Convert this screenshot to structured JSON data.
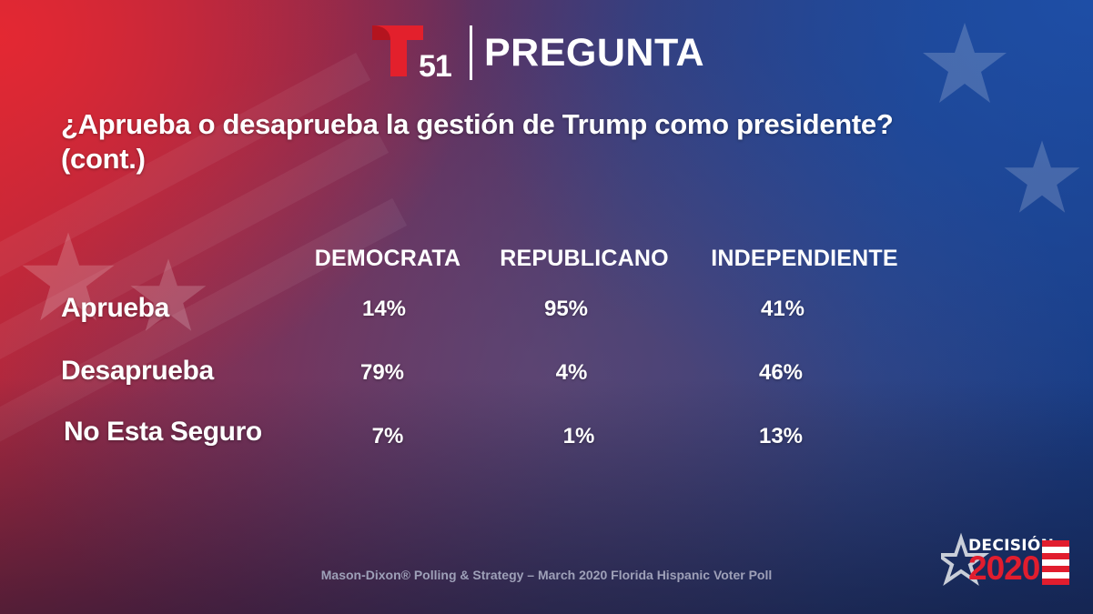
{
  "header": {
    "channel_number": "51",
    "brand_title": "PREGUNTA"
  },
  "question": {
    "line1": "¿Aprueba o desaprueba la gestión de Trump como presidente?",
    "line2": "(cont.)"
  },
  "chart_data": {
    "type": "table",
    "columns": [
      "DEMOCRATA",
      "REPUBLICANO",
      "INDEPENDIENTE"
    ],
    "rows": [
      {
        "label": "Aprueba",
        "values": [
          "14%",
          "95%",
          "41%"
        ]
      },
      {
        "label": "Desaprueba",
        "values": [
          "79%",
          "4%",
          "46%"
        ]
      },
      {
        "label": "No Esta Seguro",
        "values": [
          "7%",
          "1%",
          "13%"
        ]
      }
    ]
  },
  "footer": {
    "source": "Mason-Dixon® Polling & Strategy – March 2020 Florida Hispanic Voter Poll",
    "logo_word": "DECISIÓN",
    "logo_year": "2020"
  },
  "colors": {
    "logo_red": "#e3202c",
    "year_red": "#e11d2e",
    "source_gray": "#9ea0b8"
  },
  "icons": {
    "channel_logo": "telemundo-t-logo",
    "decision_logo": "star-flag-logo"
  }
}
